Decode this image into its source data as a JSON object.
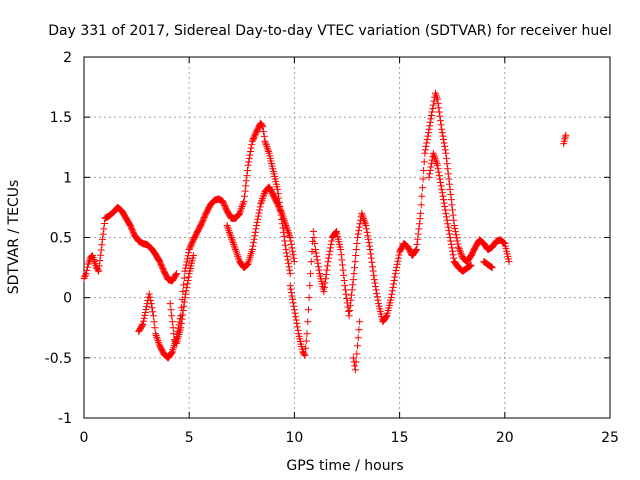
{
  "chart_data": {
    "type": "scatter",
    "title": "Day 331 of 2017, Sidereal Day-to-day VTEC variation (SDTVAR) for receiver huel",
    "xlabel": "GPS time / hours",
    "ylabel": "SDTVAR / TECUs",
    "xlim": [
      0,
      25
    ],
    "ylim": [
      -1,
      2
    ],
    "xticks": [
      0,
      5,
      10,
      15,
      20,
      25
    ],
    "xtick_labels": [
      "0",
      "5",
      "10",
      "15",
      "20",
      "25"
    ],
    "yticks": [
      -1,
      -0.5,
      0,
      0.5,
      1,
      1.5,
      2
    ],
    "ytick_labels": [
      "-1",
      "-0.5",
      "0",
      "0.5",
      "1",
      "1.5",
      "2"
    ],
    "grid": true,
    "marker": "+",
    "series": [
      {
        "name": "SDTVAR",
        "color": "#ff0000",
        "points": [
          [
            0.0,
            0.16
          ],
          [
            0.1,
            0.2
          ],
          [
            0.2,
            0.28
          ],
          [
            0.3,
            0.33
          ],
          [
            0.4,
            0.35
          ],
          [
            0.5,
            0.3
          ],
          [
            0.6,
            0.25
          ],
          [
            0.7,
            0.22
          ],
          [
            1.0,
            0.66
          ],
          [
            1.2,
            0.68
          ],
          [
            1.4,
            0.71
          ],
          [
            1.6,
            0.75
          ],
          [
            1.8,
            0.72
          ],
          [
            2.0,
            0.66
          ],
          [
            2.2,
            0.6
          ],
          [
            2.4,
            0.52
          ],
          [
            2.6,
            0.47
          ],
          [
            2.8,
            0.45
          ],
          [
            3.0,
            0.44
          ],
          [
            3.2,
            0.41
          ],
          [
            3.4,
            0.36
          ],
          [
            3.6,
            0.3
          ],
          [
            3.8,
            0.22
          ],
          [
            4.0,
            0.15
          ],
          [
            4.2,
            0.14
          ],
          [
            4.4,
            0.2
          ],
          [
            2.6,
            -0.28
          ],
          [
            2.8,
            -0.22
          ],
          [
            3.0,
            -0.05
          ],
          [
            3.1,
            0.03
          ],
          [
            3.2,
            -0.05
          ],
          [
            3.3,
            -0.15
          ],
          [
            3.4,
            -0.3
          ],
          [
            3.6,
            -0.4
          ],
          [
            3.8,
            -0.47
          ],
          [
            4.0,
            -0.5
          ],
          [
            4.2,
            -0.45
          ],
          [
            4.4,
            -0.33
          ],
          [
            4.6,
            -0.15
          ],
          [
            4.7,
            0.05
          ],
          [
            4.8,
            0.22
          ],
          [
            5.0,
            0.4
          ],
          [
            5.2,
            0.48
          ],
          [
            5.4,
            0.55
          ],
          [
            5.6,
            0.62
          ],
          [
            5.8,
            0.7
          ],
          [
            6.0,
            0.77
          ],
          [
            6.2,
            0.81
          ],
          [
            6.4,
            0.82
          ],
          [
            6.6,
            0.8
          ],
          [
            6.8,
            0.72
          ],
          [
            7.0,
            0.66
          ],
          [
            7.2,
            0.66
          ],
          [
            7.4,
            0.7
          ],
          [
            7.6,
            0.8
          ],
          [
            7.8,
            1.1
          ],
          [
            8.0,
            1.3
          ],
          [
            8.2,
            1.38
          ],
          [
            8.4,
            1.45
          ],
          [
            8.5,
            1.42
          ],
          [
            8.6,
            1.3
          ],
          [
            8.8,
            1.2
          ],
          [
            9.0,
            1.05
          ],
          [
            9.2,
            0.9
          ],
          [
            9.4,
            0.65
          ],
          [
            9.6,
            0.4
          ],
          [
            9.8,
            0.2
          ],
          [
            4.1,
            -0.05
          ],
          [
            4.2,
            -0.2
          ],
          [
            4.3,
            -0.35
          ],
          [
            4.4,
            -0.38
          ],
          [
            4.6,
            -0.25
          ],
          [
            4.8,
            0.0
          ],
          [
            5.0,
            0.2
          ],
          [
            5.2,
            0.35
          ],
          [
            6.8,
            0.6
          ],
          [
            7.0,
            0.5
          ],
          [
            7.2,
            0.4
          ],
          [
            7.4,
            0.3
          ],
          [
            7.6,
            0.25
          ],
          [
            7.8,
            0.28
          ],
          [
            8.0,
            0.4
          ],
          [
            8.2,
            0.6
          ],
          [
            8.4,
            0.78
          ],
          [
            8.6,
            0.88
          ],
          [
            8.8,
            0.92
          ],
          [
            9.0,
            0.85
          ],
          [
            9.2,
            0.78
          ],
          [
            9.4,
            0.7
          ],
          [
            9.6,
            0.6
          ],
          [
            9.8,
            0.5
          ],
          [
            10.0,
            0.3
          ],
          [
            9.8,
            0.1
          ],
          [
            10.0,
            -0.1
          ],
          [
            10.2,
            -0.3
          ],
          [
            10.4,
            -0.45
          ],
          [
            10.5,
            -0.48
          ],
          [
            10.6,
            -0.3
          ],
          [
            10.7,
            0.0
          ],
          [
            10.8,
            0.3
          ],
          [
            10.9,
            0.55
          ],
          [
            11.0,
            0.4
          ],
          [
            11.2,
            0.2
          ],
          [
            11.4,
            0.05
          ],
          [
            11.6,
            0.3
          ],
          [
            11.8,
            0.5
          ],
          [
            12.0,
            0.55
          ],
          [
            12.2,
            0.4
          ],
          [
            12.4,
            0.1
          ],
          [
            12.6,
            -0.15
          ],
          [
            12.8,
            0.15
          ],
          [
            13.0,
            0.5
          ],
          [
            13.2,
            0.7
          ],
          [
            13.4,
            0.6
          ],
          [
            13.6,
            0.4
          ],
          [
            13.8,
            0.15
          ],
          [
            14.0,
            -0.05
          ],
          [
            14.2,
            -0.2
          ],
          [
            14.4,
            -0.15
          ],
          [
            14.6,
            0.0
          ],
          [
            14.8,
            0.2
          ],
          [
            15.0,
            0.38
          ],
          [
            15.2,
            0.45
          ],
          [
            15.4,
            0.42
          ],
          [
            15.6,
            0.35
          ],
          [
            15.8,
            0.4
          ],
          [
            16.0,
            0.7
          ],
          [
            16.2,
            1.2
          ],
          [
            16.4,
            1.4
          ],
          [
            16.6,
            1.6
          ],
          [
            16.7,
            1.7
          ],
          [
            16.8,
            1.65
          ],
          [
            17.0,
            1.4
          ],
          [
            17.2,
            1.2
          ],
          [
            17.4,
            0.9
          ],
          [
            17.6,
            0.6
          ],
          [
            17.8,
            0.42
          ],
          [
            18.0,
            0.33
          ],
          [
            18.2,
            0.3
          ],
          [
            18.4,
            0.35
          ],
          [
            18.6,
            0.42
          ],
          [
            18.8,
            0.48
          ],
          [
            19.0,
            0.45
          ],
          [
            19.2,
            0.4
          ],
          [
            19.4,
            0.42
          ],
          [
            19.6,
            0.47
          ],
          [
            19.8,
            0.48
          ],
          [
            20.0,
            0.45
          ],
          [
            20.2,
            0.3
          ],
          [
            12.8,
            -0.5
          ],
          [
            12.9,
            -0.6
          ],
          [
            13.0,
            -0.4
          ],
          [
            13.1,
            -0.2
          ],
          [
            16.4,
            1.0
          ],
          [
            16.6,
            1.2
          ],
          [
            16.8,
            1.1
          ],
          [
            17.0,
            0.9
          ],
          [
            17.2,
            0.7
          ],
          [
            17.4,
            0.5
          ],
          [
            17.6,
            0.3
          ],
          [
            17.8,
            0.25
          ],
          [
            18.0,
            0.22
          ],
          [
            18.4,
            0.27
          ],
          [
            19.0,
            0.3
          ],
          [
            19.4,
            0.25
          ],
          [
            22.8,
            1.28
          ],
          [
            22.85,
            1.32
          ],
          [
            22.9,
            1.35
          ]
        ]
      }
    ]
  }
}
